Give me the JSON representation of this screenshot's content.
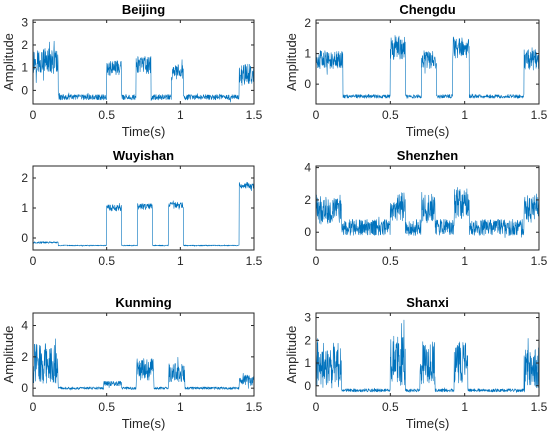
{
  "figure": {
    "background": "#ffffff",
    "series_color": "#0072BD"
  },
  "chart_data": [
    {
      "type": "line",
      "title": "Beijing",
      "xlabel": "Time(s)",
      "ylabel": "Amplitude",
      "xlim": [
        0,
        1.5
      ],
      "ylim": [
        -0.6,
        3.1
      ],
      "xticks": [
        0,
        0.5,
        1,
        1.5
      ],
      "xtick_labels": [
        "0",
        "0.5",
        "1",
        "1.5"
      ],
      "yticks": [
        0,
        1,
        2,
        3
      ],
      "ytick_labels": [
        "0",
        "1",
        "2",
        "3"
      ],
      "grid": false,
      "baseline": -0.3,
      "noise": 0.12,
      "segments": [
        {
          "start": 0.0,
          "end": 0.17,
          "level": 1.3,
          "noise": 0.55
        },
        {
          "start": 0.5,
          "end": 0.6,
          "level": 1.0,
          "noise": 0.35
        },
        {
          "start": 0.7,
          "end": 0.8,
          "level": 1.1,
          "noise": 0.4
        },
        {
          "start": 0.94,
          "end": 1.02,
          "level": 0.8,
          "noise": 0.35
        },
        {
          "start": 1.4,
          "end": 1.5,
          "level": 0.7,
          "noise": 0.5
        }
      ]
    },
    {
      "type": "line",
      "title": "Chengdu",
      "xlabel": "Time(s)",
      "ylabel": "Amplitude",
      "xlim": [
        0,
        1.5
      ],
      "ylim": [
        -0.65,
        2.1
      ],
      "xticks": [
        0,
        0.5,
        1,
        1.5
      ],
      "xtick_labels": [
        "0",
        "0.5",
        "1",
        "1.5"
      ],
      "yticks": [
        0,
        1,
        2
      ],
      "ytick_labels": [
        "0",
        "1",
        "2"
      ],
      "grid": false,
      "baseline": -0.4,
      "noise": 0.06,
      "segments": [
        {
          "start": 0.0,
          "end": 0.18,
          "level": 0.8,
          "noise": 0.3
        },
        {
          "start": 0.5,
          "end": 0.6,
          "level": 1.2,
          "noise": 0.4
        },
        {
          "start": 0.71,
          "end": 0.81,
          "level": 0.8,
          "noise": 0.3
        },
        {
          "start": 0.92,
          "end": 1.03,
          "level": 1.2,
          "noise": 0.35
        },
        {
          "start": 1.4,
          "end": 1.5,
          "level": 0.8,
          "noise": 0.35
        }
      ]
    },
    {
      "type": "line",
      "title": "Wuyishan",
      "xlabel": "",
      "ylabel": "",
      "xlim": [
        0,
        1.5
      ],
      "ylim": [
        -0.4,
        2.4
      ],
      "xticks": [
        0,
        0.5,
        1,
        1.5
      ],
      "xtick_labels": [
        "0",
        "0.5",
        "1",
        "1.5"
      ],
      "yticks": [
        0,
        1,
        2
      ],
      "ytick_labels": [
        "0",
        "1",
        "2"
      ],
      "grid": false,
      "baseline": -0.25,
      "noise": 0.015,
      "segments": [
        {
          "start": 0.0,
          "end": 0.17,
          "level": -0.15,
          "noise": 0.03
        },
        {
          "start": 0.5,
          "end": 0.6,
          "level": 1.0,
          "noise": 0.12
        },
        {
          "start": 0.71,
          "end": 0.81,
          "level": 1.05,
          "noise": 0.1
        },
        {
          "start": 0.92,
          "end": 1.02,
          "level": 1.1,
          "noise": 0.1
        },
        {
          "start": 1.4,
          "end": 1.5,
          "level": 1.75,
          "noise": 0.12
        }
      ]
    },
    {
      "type": "line",
      "title": "Shenzhen",
      "xlabel": "",
      "ylabel": "",
      "xlim": [
        0,
        1.5
      ],
      "ylim": [
        -1.1,
        4.1
      ],
      "xticks": [
        0,
        0.5,
        1,
        1.5
      ],
      "xtick_labels": [
        "0",
        "0.5",
        "1",
        "1.5"
      ],
      "yticks": [
        0,
        2,
        4
      ],
      "ytick_labels": [
        "0",
        "2",
        "4"
      ],
      "grid": false,
      "baseline": 0.3,
      "noise": 0.5,
      "segments": [
        {
          "start": 0.0,
          "end": 0.17,
          "level": 1.4,
          "noise": 0.9
        },
        {
          "start": 0.5,
          "end": 0.6,
          "level": 1.6,
          "noise": 0.9
        },
        {
          "start": 0.71,
          "end": 0.8,
          "level": 1.6,
          "noise": 0.9
        },
        {
          "start": 0.93,
          "end": 1.03,
          "level": 1.8,
          "noise": 1.0
        },
        {
          "start": 1.4,
          "end": 1.5,
          "level": 1.5,
          "noise": 0.9
        }
      ]
    },
    {
      "type": "line",
      "title": "Kunming",
      "xlabel": "Time(s)",
      "ylabel": "Amplitude",
      "xlim": [
        0,
        1.5
      ],
      "ylim": [
        -0.5,
        4.8
      ],
      "xticks": [
        0,
        0.5,
        1,
        1.5
      ],
      "xtick_labels": [
        "0",
        "0.5",
        "1",
        "1.5"
      ],
      "yticks": [
        0,
        2,
        4
      ],
      "ytick_labels": [
        "0",
        "2",
        "4"
      ],
      "grid": false,
      "baseline": 0.0,
      "noise": 0.08,
      "segments": [
        {
          "start": 0.0,
          "end": 0.17,
          "level": 1.6,
          "noise": 1.3
        },
        {
          "start": 0.48,
          "end": 0.6,
          "level": 0.3,
          "noise": 0.15
        },
        {
          "start": 0.7,
          "end": 0.82,
          "level": 1.2,
          "noise": 0.7
        },
        {
          "start": 0.92,
          "end": 1.03,
          "level": 1.0,
          "noise": 0.6
        },
        {
          "start": 1.4,
          "end": 1.5,
          "level": 0.5,
          "noise": 0.35
        }
      ]
    },
    {
      "type": "line",
      "title": "Shanxi",
      "xlabel": "Time(s)",
      "ylabel": "Amplitude",
      "xlim": [
        0,
        1.5
      ],
      "ylim": [
        -0.45,
        3.2
      ],
      "xticks": [
        0,
        0.5,
        1,
        1.5
      ],
      "xtick_labels": [
        "0",
        "0.5",
        "1",
        "1.5"
      ],
      "yticks": [
        0,
        1,
        2,
        3
      ],
      "ytick_labels": [
        "0",
        "1",
        "2",
        "3"
      ],
      "grid": false,
      "baseline": -0.2,
      "noise": 0.07,
      "segments": [
        {
          "start": 0.0,
          "end": 0.17,
          "level": 0.9,
          "noise": 1.0
        },
        {
          "start": 0.5,
          "end": 0.6,
          "level": 1.1,
          "noise": 1.1
        },
        {
          "start": 0.7,
          "end": 0.8,
          "level": 1.0,
          "noise": 1.0
        },
        {
          "start": 0.93,
          "end": 1.02,
          "level": 1.0,
          "noise": 1.0
        },
        {
          "start": 1.4,
          "end": 1.5,
          "level": 0.8,
          "noise": 0.9
        }
      ]
    }
  ]
}
